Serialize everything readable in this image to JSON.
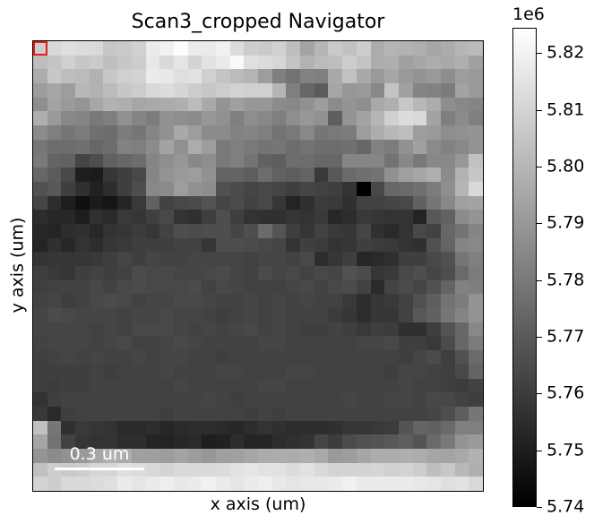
{
  "window": {
    "title": "Scan3_cropped Navigator"
  },
  "chart_data": {
    "type": "heatmap",
    "title": "Scan3_cropped Navigator",
    "xlabel": "x axis (um)",
    "ylabel": "y axis (um)",
    "colormap": "gray",
    "colorbar": {
      "multiplier": "1e6",
      "min": 5.74,
      "max": 5.8245,
      "ticks": [
        5.74,
        5.75,
        5.76,
        5.77,
        5.78,
        5.79,
        5.8,
        5.81,
        5.82
      ],
      "tick_labels": [
        "5.74",
        "5.75",
        "5.76",
        "5.77",
        "5.78",
        "5.79",
        "5.80",
        "5.81",
        "5.82"
      ]
    },
    "navigator_marker": {
      "row": 0,
      "col": 0,
      "color": "#e41a1c"
    },
    "scalebar": {
      "label": "0.3 um"
    },
    "grid": false,
    "rows": 32,
    "cols": 32,
    "values": [
      [
        5.808,
        5.812,
        5.814,
        5.813,
        5.812,
        5.806,
        5.807,
        5.809,
        5.818,
        5.82,
        5.824,
        5.818,
        5.818,
        5.82,
        5.813,
        5.808,
        5.807,
        5.809,
        5.803,
        5.794,
        5.8,
        5.807,
        5.804,
        5.808,
        5.797,
        5.8,
        5.799,
        5.798,
        5.795,
        5.797,
        5.8,
        5.802
      ],
      [
        5.803,
        5.805,
        5.809,
        5.806,
        5.807,
        5.803,
        5.806,
        5.808,
        5.817,
        5.812,
        5.816,
        5.81,
        5.815,
        5.818,
        5.823,
        5.814,
        5.813,
        5.811,
        5.805,
        5.799,
        5.802,
        5.803,
        5.808,
        5.805,
        5.797,
        5.798,
        5.793,
        5.795,
        5.797,
        5.796,
        5.798,
        5.793
      ],
      [
        5.797,
        5.806,
        5.803,
        5.802,
        5.799,
        5.806,
        5.809,
        5.81,
        5.818,
        5.817,
        5.814,
        5.815,
        5.809,
        5.805,
        5.802,
        5.8,
        5.792,
        5.782,
        5.778,
        5.783,
        5.782,
        5.796,
        5.804,
        5.796,
        5.791,
        5.795,
        5.791,
        5.789,
        5.791,
        5.787,
        5.792,
        5.791
      ],
      [
        5.792,
        5.795,
        5.792,
        5.801,
        5.799,
        5.802,
        5.806,
        5.808,
        5.812,
        5.813,
        5.811,
        5.808,
        5.806,
        5.808,
        5.81,
        5.809,
        5.809,
        5.8,
        5.782,
        5.774,
        5.77,
        5.795,
        5.79,
        5.791,
        5.785,
        5.805,
        5.793,
        5.784,
        5.783,
        5.781,
        5.794,
        5.791
      ],
      [
        5.787,
        5.794,
        5.791,
        5.789,
        5.795,
        5.799,
        5.798,
        5.795,
        5.796,
        5.797,
        5.798,
        5.802,
        5.796,
        5.789,
        5.793,
        5.79,
        5.79,
        5.786,
        5.785,
        5.788,
        5.792,
        5.786,
        5.789,
        5.787,
        5.796,
        5.798,
        5.806,
        5.801,
        5.797,
        5.787,
        5.785,
        5.784
      ],
      [
        5.798,
        5.791,
        5.785,
        5.784,
        5.78,
        5.782,
        5.788,
        5.784,
        5.781,
        5.788,
        5.787,
        5.786,
        5.79,
        5.788,
        5.782,
        5.787,
        5.785,
        5.782,
        5.787,
        5.79,
        5.788,
        5.771,
        5.789,
        5.794,
        5.8,
        5.809,
        5.813,
        5.812,
        5.794,
        5.782,
        5.786,
        5.782
      ],
      [
        5.786,
        5.782,
        5.779,
        5.781,
        5.777,
        5.776,
        5.781,
        5.779,
        5.784,
        5.788,
        5.796,
        5.792,
        5.786,
        5.786,
        5.783,
        5.784,
        5.782,
        5.778,
        5.78,
        5.785,
        5.779,
        5.78,
        5.781,
        5.792,
        5.797,
        5.801,
        5.803,
        5.792,
        5.791,
        5.787,
        5.788,
        5.789
      ],
      [
        5.779,
        5.776,
        5.776,
        5.777,
        5.774,
        5.776,
        5.783,
        5.782,
        5.786,
        5.794,
        5.788,
        5.797,
        5.792,
        5.78,
        5.782,
        5.78,
        5.778,
        5.779,
        5.776,
        5.778,
        5.776,
        5.776,
        5.777,
        5.774,
        5.783,
        5.781,
        5.788,
        5.793,
        5.786,
        5.783,
        5.785,
        5.789
      ],
      [
        5.78,
        5.773,
        5.772,
        5.763,
        5.766,
        5.772,
        5.774,
        5.776,
        5.784,
        5.787,
        5.79,
        5.785,
        5.787,
        5.78,
        5.782,
        5.778,
        5.772,
        5.771,
        5.776,
        5.776,
        5.774,
        5.774,
        5.784,
        5.784,
        5.784,
        5.778,
        5.785,
        5.78,
        5.785,
        5.785,
        5.79,
        5.804
      ],
      [
        5.774,
        5.77,
        5.764,
        5.75,
        5.749,
        5.758,
        5.761,
        5.764,
        5.784,
        5.789,
        5.791,
        5.792,
        5.788,
        5.773,
        5.773,
        5.771,
        5.776,
        5.772,
        5.771,
        5.773,
        5.759,
        5.769,
        5.775,
        5.777,
        5.778,
        5.788,
        5.793,
        5.795,
        5.798,
        5.786,
        5.799,
        5.806
      ],
      [
        5.767,
        5.769,
        5.761,
        5.756,
        5.751,
        5.755,
        5.761,
        5.766,
        5.785,
        5.786,
        5.792,
        5.788,
        5.787,
        5.767,
        5.765,
        5.763,
        5.764,
        5.763,
        5.761,
        5.763,
        5.762,
        5.761,
        5.757,
        5.74,
        5.764,
        5.774,
        5.775,
        5.777,
        5.781,
        5.787,
        5.8,
        5.812
      ],
      [
        5.763,
        5.755,
        5.75,
        5.745,
        5.749,
        5.747,
        5.752,
        5.759,
        5.772,
        5.762,
        5.764,
        5.765,
        5.768,
        5.763,
        5.765,
        5.762,
        5.764,
        5.758,
        5.752,
        5.756,
        5.76,
        5.759,
        5.756,
        5.762,
        5.762,
        5.763,
        5.764,
        5.772,
        5.779,
        5.785,
        5.793,
        5.794
      ],
      [
        5.755,
        5.753,
        5.753,
        5.75,
        5.756,
        5.754,
        5.759,
        5.758,
        5.761,
        5.764,
        5.757,
        5.756,
        5.761,
        5.766,
        5.761,
        5.757,
        5.756,
        5.756,
        5.758,
        5.757,
        5.759,
        5.753,
        5.755,
        5.759,
        5.758,
        5.757,
        5.757,
        5.752,
        5.769,
        5.772,
        5.786,
        5.789
      ],
      [
        5.753,
        5.752,
        5.755,
        5.756,
        5.753,
        5.757,
        5.758,
        5.76,
        5.758,
        5.762,
        5.766,
        5.765,
        5.766,
        5.766,
        5.763,
        5.766,
        5.775,
        5.768,
        5.761,
        5.758,
        5.762,
        5.759,
        5.758,
        5.763,
        5.756,
        5.754,
        5.757,
        5.764,
        5.762,
        5.774,
        5.778,
        5.784
      ],
      [
        5.752,
        5.756,
        5.753,
        5.757,
        5.755,
        5.758,
        5.759,
        5.761,
        5.761,
        5.761,
        5.762,
        5.762,
        5.758,
        5.766,
        5.766,
        5.765,
        5.764,
        5.763,
        5.757,
        5.761,
        5.76,
        5.757,
        5.758,
        5.761,
        5.76,
        5.759,
        5.757,
        5.756,
        5.767,
        5.773,
        5.784,
        5.785
      ],
      [
        5.757,
        5.758,
        5.758,
        5.758,
        5.759,
        5.761,
        5.763,
        5.761,
        5.763,
        5.762,
        5.762,
        5.763,
        5.763,
        5.763,
        5.763,
        5.762,
        5.763,
        5.763,
        5.762,
        5.764,
        5.755,
        5.758,
        5.761,
        5.753,
        5.754,
        5.756,
        5.761,
        5.761,
        5.764,
        5.767,
        5.779,
        5.782
      ],
      [
        5.761,
        5.759,
        5.758,
        5.761,
        5.762,
        5.761,
        5.762,
        5.765,
        5.764,
        5.764,
        5.763,
        5.763,
        5.764,
        5.765,
        5.763,
        5.762,
        5.765,
        5.763,
        5.764,
        5.762,
        5.764,
        5.763,
        5.767,
        5.765,
        5.758,
        5.759,
        5.764,
        5.766,
        5.763,
        5.766,
        5.775,
        5.781
      ],
      [
        5.761,
        5.762,
        5.762,
        5.762,
        5.764,
        5.762,
        5.764,
        5.765,
        5.764,
        5.764,
        5.764,
        5.765,
        5.762,
        5.764,
        5.763,
        5.762,
        5.762,
        5.762,
        5.763,
        5.764,
        5.762,
        5.764,
        5.765,
        5.762,
        5.754,
        5.763,
        5.765,
        5.763,
        5.767,
        5.773,
        5.783,
        5.782
      ],
      [
        5.762,
        5.763,
        5.761,
        5.762,
        5.764,
        5.765,
        5.764,
        5.762,
        5.763,
        5.763,
        5.764,
        5.764,
        5.763,
        5.762,
        5.762,
        5.763,
        5.762,
        5.763,
        5.762,
        5.763,
        5.762,
        5.762,
        5.759,
        5.755,
        5.758,
        5.759,
        5.762,
        5.767,
        5.771,
        5.778,
        5.781,
        5.789
      ],
      [
        5.763,
        5.765,
        5.764,
        5.763,
        5.763,
        5.763,
        5.762,
        5.763,
        5.763,
        5.764,
        5.763,
        5.763,
        5.762,
        5.761,
        5.762,
        5.763,
        5.762,
        5.763,
        5.762,
        5.762,
        5.762,
        5.76,
        5.758,
        5.755,
        5.758,
        5.758,
        5.762,
        5.769,
        5.772,
        5.779,
        5.784,
        5.789
      ],
      [
        5.763,
        5.763,
        5.763,
        5.763,
        5.762,
        5.763,
        5.762,
        5.764,
        5.764,
        5.764,
        5.763,
        5.762,
        5.763,
        5.762,
        5.763,
        5.764,
        5.762,
        5.763,
        5.762,
        5.761,
        5.761,
        5.762,
        5.761,
        5.759,
        5.761,
        5.76,
        5.756,
        5.756,
        5.761,
        5.768,
        5.774,
        5.785
      ],
      [
        5.762,
        5.763,
        5.763,
        5.763,
        5.762,
        5.763,
        5.764,
        5.762,
        5.762,
        5.763,
        5.764,
        5.763,
        5.762,
        5.762,
        5.762,
        5.762,
        5.763,
        5.763,
        5.762,
        5.762,
        5.762,
        5.762,
        5.762,
        5.763,
        5.763,
        5.764,
        5.761,
        5.761,
        5.759,
        5.765,
        5.774,
        5.781
      ],
      [
        5.761,
        5.762,
        5.763,
        5.762,
        5.763,
        5.762,
        5.762,
        5.763,
        5.762,
        5.763,
        5.763,
        5.762,
        5.762,
        5.761,
        5.762,
        5.762,
        5.762,
        5.762,
        5.762,
        5.762,
        5.762,
        5.762,
        5.762,
        5.762,
        5.762,
        5.762,
        5.761,
        5.763,
        5.765,
        5.761,
        5.767,
        5.775
      ],
      [
        5.761,
        5.761,
        5.761,
        5.761,
        5.762,
        5.761,
        5.762,
        5.762,
        5.762,
        5.763,
        5.762,
        5.762,
        5.762,
        5.763,
        5.763,
        5.762,
        5.762,
        5.762,
        5.763,
        5.763,
        5.762,
        5.762,
        5.762,
        5.762,
        5.762,
        5.761,
        5.763,
        5.763,
        5.762,
        5.761,
        5.764,
        5.773
      ],
      [
        5.761,
        5.76,
        5.761,
        5.761,
        5.762,
        5.762,
        5.762,
        5.762,
        5.762,
        5.762,
        5.763,
        5.762,
        5.762,
        5.762,
        5.762,
        5.762,
        5.763,
        5.763,
        5.762,
        5.762,
        5.762,
        5.762,
        5.762,
        5.762,
        5.762,
        5.762,
        5.763,
        5.762,
        5.762,
        5.761,
        5.76,
        5.762
      ],
      [
        5.757,
        5.761,
        5.762,
        5.762,
        5.762,
        5.762,
        5.762,
        5.762,
        5.762,
        5.762,
        5.762,
        5.762,
        5.763,
        5.762,
        5.761,
        5.762,
        5.762,
        5.762,
        5.762,
        5.762,
        5.762,
        5.762,
        5.763,
        5.762,
        5.762,
        5.763,
        5.763,
        5.762,
        5.764,
        5.764,
        5.762,
        5.761
      ],
      [
        5.759,
        5.754,
        5.761,
        5.762,
        5.762,
        5.762,
        5.762,
        5.762,
        5.762,
        5.761,
        5.762,
        5.762,
        5.762,
        5.762,
        5.762,
        5.761,
        5.762,
        5.761,
        5.762,
        5.762,
        5.762,
        5.762,
        5.762,
        5.762,
        5.762,
        5.762,
        5.762,
        5.762,
        5.763,
        5.766,
        5.771,
        5.779
      ],
      [
        5.804,
        5.779,
        5.756,
        5.759,
        5.758,
        5.757,
        5.754,
        5.754,
        5.755,
        5.753,
        5.754,
        5.755,
        5.755,
        5.754,
        5.753,
        5.755,
        5.757,
        5.756,
        5.755,
        5.755,
        5.755,
        5.756,
        5.758,
        5.758,
        5.759,
        5.76,
        5.768,
        5.773,
        5.772,
        5.775,
        5.782,
        5.782
      ],
      [
        5.795,
        5.778,
        5.762,
        5.758,
        5.757,
        5.757,
        5.755,
        5.755,
        5.752,
        5.752,
        5.753,
        5.754,
        5.75,
        5.751,
        5.755,
        5.752,
        5.752,
        5.755,
        5.756,
        5.757,
        5.763,
        5.76,
        5.765,
        5.767,
        5.768,
        5.769,
        5.771,
        5.768,
        5.775,
        5.78,
        5.789,
        5.791
      ],
      [
        5.789,
        5.786,
        5.788,
        5.791,
        5.795,
        5.799,
        5.797,
        5.793,
        5.793,
        5.792,
        5.794,
        5.792,
        5.79,
        5.793,
        5.793,
        5.795,
        5.797,
        5.797,
        5.797,
        5.798,
        5.796,
        5.791,
        5.792,
        5.795,
        5.797,
        5.797,
        5.798,
        5.797,
        5.795,
        5.794,
        5.796,
        5.799
      ],
      [
        5.804,
        5.808,
        5.807,
        5.808,
        5.811,
        5.811,
        5.814,
        5.813,
        5.812,
        5.81,
        5.812,
        5.812,
        5.812,
        5.813,
        5.815,
        5.816,
        5.815,
        5.815,
        5.813,
        5.815,
        5.812,
        5.81,
        5.81,
        5.81,
        5.811,
        5.809,
        5.81,
        5.808,
        5.803,
        5.806,
        5.801,
        5.798
      ],
      [
        5.81,
        5.808,
        5.812,
        5.812,
        5.813,
        5.814,
        5.818,
        5.816,
        5.818,
        5.819,
        5.817,
        5.818,
        5.82,
        5.818,
        5.816,
        5.818,
        5.819,
        5.817,
        5.816,
        5.817,
        5.817,
        5.818,
        5.82,
        5.818,
        5.818,
        5.818,
        5.818,
        5.817,
        5.816,
        5.814,
        5.815,
        5.812
      ]
    ]
  }
}
